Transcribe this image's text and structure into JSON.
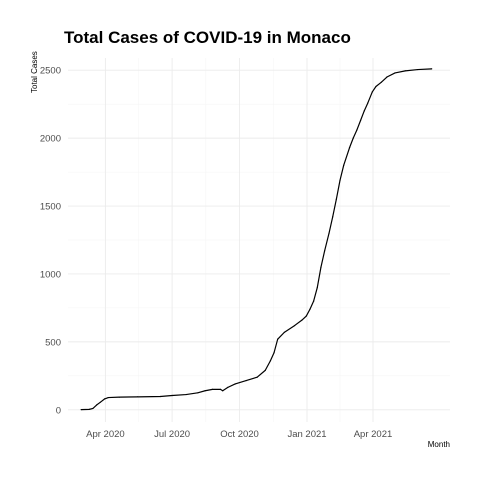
{
  "chart_data": {
    "type": "line",
    "title": "Total Cases of COVID-19 in Monaco",
    "xlabel": "Month",
    "ylabel": "Total Cases",
    "x_range": [
      "2020-02-10",
      "2021-07-15"
    ],
    "ylim": [
      -90,
      2590
    ],
    "y_ticks": [
      0,
      500,
      1000,
      1500,
      2000,
      2500
    ],
    "y_tick_labels": [
      "0",
      "500",
      "1000",
      "1500",
      "2000",
      "2500"
    ],
    "x_ticks": [
      "2020-04-01",
      "2020-07-01",
      "2020-10-01",
      "2021-01-01",
      "2021-04-01"
    ],
    "x_tick_labels": [
      "Apr 2020",
      "Jul 2020",
      "Oct 2020",
      "Jan 2021",
      "Apr 2021"
    ],
    "grid": true,
    "series": [
      {
        "color": "#000000",
        "points": [
          [
            "2020-02-28",
            1
          ],
          [
            "2020-03-10",
            3
          ],
          [
            "2020-03-15",
            10
          ],
          [
            "2020-03-20",
            35
          ],
          [
            "2020-03-25",
            55
          ],
          [
            "2020-03-31",
            80
          ],
          [
            "2020-04-05",
            90
          ],
          [
            "2020-04-20",
            93
          ],
          [
            "2020-05-15",
            95
          ],
          [
            "2020-06-15",
            98
          ],
          [
            "2020-07-01",
            105
          ],
          [
            "2020-07-20",
            112
          ],
          [
            "2020-08-05",
            125
          ],
          [
            "2020-08-15",
            140
          ],
          [
            "2020-08-25",
            150
          ],
          [
            "2020-09-05",
            150
          ],
          [
            "2020-09-08",
            140
          ],
          [
            "2020-09-15",
            165
          ],
          [
            "2020-09-25",
            190
          ],
          [
            "2020-10-10",
            215
          ],
          [
            "2020-10-25",
            240
          ],
          [
            "2020-11-05",
            290
          ],
          [
            "2020-11-12",
            360
          ],
          [
            "2020-11-17",
            420
          ],
          [
            "2020-11-22",
            520
          ],
          [
            "2020-12-01",
            570
          ],
          [
            "2020-12-15",
            620
          ],
          [
            "2020-12-25",
            660
          ],
          [
            "2020-12-31",
            690
          ],
          [
            "2021-01-05",
            740
          ],
          [
            "2021-01-10",
            800
          ],
          [
            "2021-01-15",
            900
          ],
          [
            "2021-01-20",
            1050
          ],
          [
            "2021-01-25",
            1170
          ],
          [
            "2021-01-31",
            1300
          ],
          [
            "2021-02-05",
            1420
          ],
          [
            "2021-02-10",
            1550
          ],
          [
            "2021-02-15",
            1690
          ],
          [
            "2021-02-20",
            1800
          ],
          [
            "2021-02-28",
            1930
          ],
          [
            "2021-03-05",
            2000
          ],
          [
            "2021-03-10",
            2060
          ],
          [
            "2021-03-15",
            2130
          ],
          [
            "2021-03-20",
            2200
          ],
          [
            "2021-03-25",
            2260
          ],
          [
            "2021-03-31",
            2340
          ],
          [
            "2021-04-05",
            2380
          ],
          [
            "2021-04-12",
            2410
          ],
          [
            "2021-04-20",
            2450
          ],
          [
            "2021-05-01",
            2480
          ],
          [
            "2021-05-15",
            2495
          ],
          [
            "2021-06-01",
            2505
          ],
          [
            "2021-06-20",
            2510
          ]
        ]
      }
    ]
  }
}
